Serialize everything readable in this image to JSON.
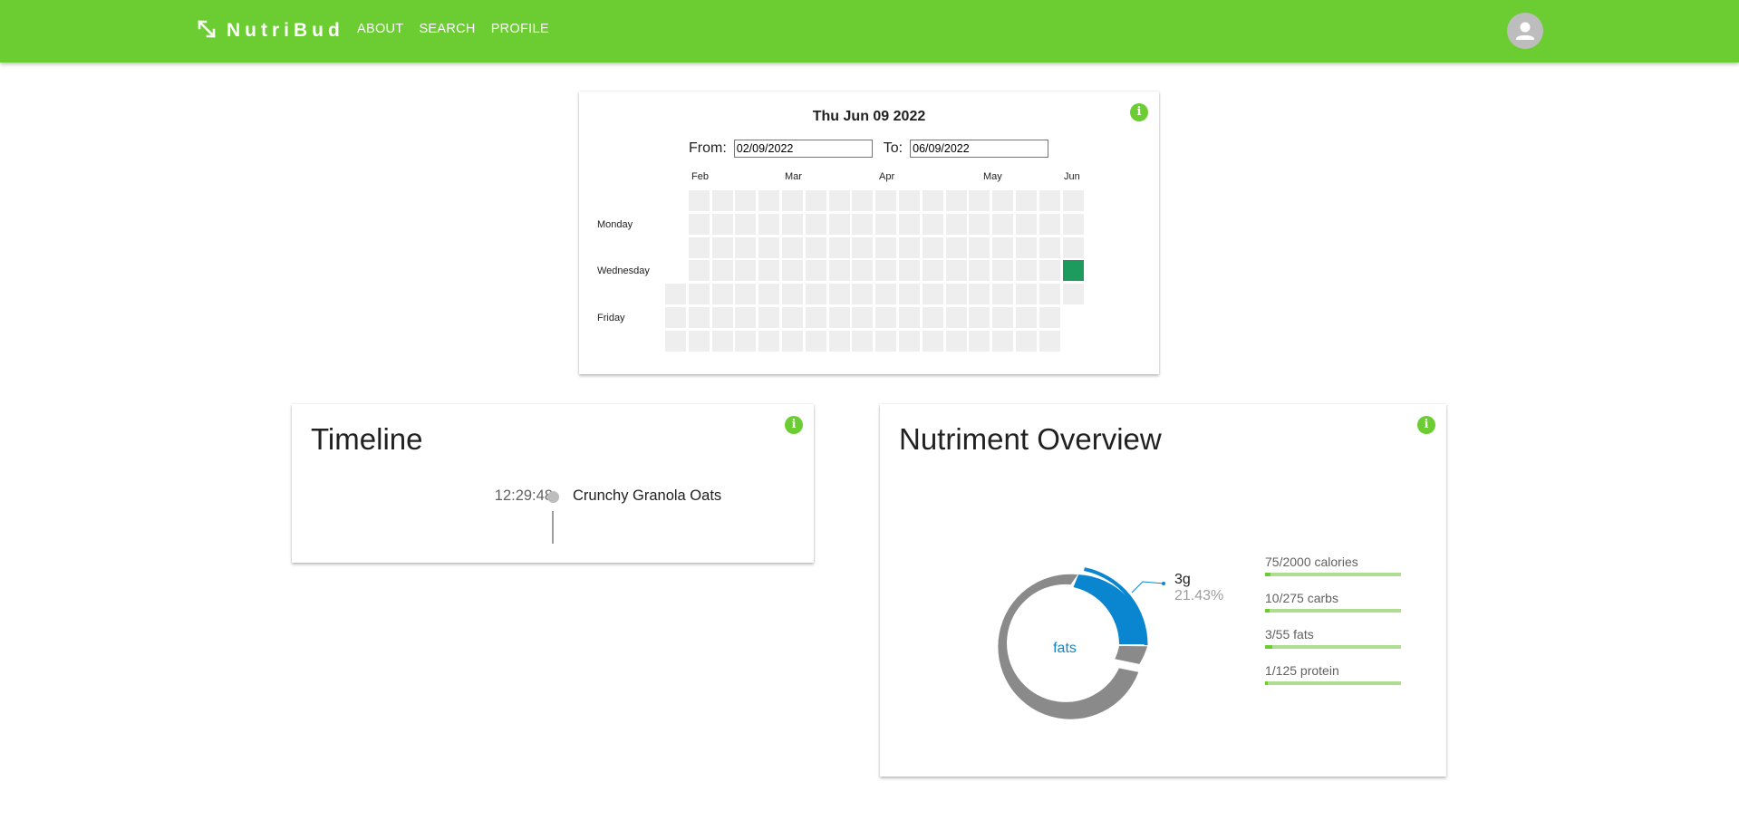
{
  "app": {
    "brand": "NutriBud",
    "nav": [
      "ABOUT",
      "SEARCH",
      "PROFILE"
    ],
    "brand_color": "#6ccd33"
  },
  "calendar": {
    "date_title": "Thu Jun 09 2022",
    "from_label": "From:",
    "from_value": "02/09/2022",
    "to_label": "To:",
    "to_value": "06/09/2022",
    "months": [
      "Feb",
      "Mar",
      "Apr",
      "May",
      "Jun"
    ],
    "weekday_labels": [
      "Monday",
      "Wednesday",
      "Friday"
    ],
    "active_day": "Wed Jun 08 2022",
    "active_color": "#1d9b5e",
    "empty_color": "#eeeeee",
    "info_icon": "info-icon"
  },
  "timeline": {
    "title": "Timeline",
    "entries": [
      {
        "time": "12:29:48",
        "food": "Crunchy Granola Oats"
      }
    ]
  },
  "nutriment": {
    "title": "Nutriment Overview",
    "donut": {
      "center_label": "fats",
      "highlight_value": "3g",
      "highlight_percent": "21.43%",
      "highlight_color": "#0a85cf",
      "base_color": "#8a8a8a",
      "segments": [
        {
          "name": "carbs",
          "value": 10
        },
        {
          "name": "fats",
          "value": 3
        },
        {
          "name": "protein",
          "value": 1
        }
      ]
    },
    "bars": [
      {
        "label": "75/2000 calories",
        "current": 75,
        "max": 2000
      },
      {
        "label": "10/275 carbs",
        "current": 10,
        "max": 275
      },
      {
        "label": "3/55 fats",
        "current": 3,
        "max": 55
      },
      {
        "label": "1/125 protein",
        "current": 1,
        "max": 125
      }
    ]
  }
}
